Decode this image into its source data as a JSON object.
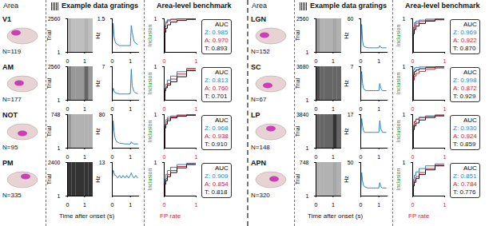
{
  "chart_data": {
    "type": "multi-panel",
    "headers": {
      "area": "Area",
      "example": "Example data gratings",
      "benchmark": "Area-level benchmark"
    },
    "axis_labels": {
      "trial": "Trial",
      "hz": "Hz",
      "inclusion": "Inclusion",
      "time": "Time after onset (s)",
      "fp": "FP rate"
    },
    "auc_title": "AUC",
    "xlim": [
      0,
      1.5
    ],
    "xticks": [
      0,
      1
    ],
    "raster_bins": [
      0,
      0.25,
      0.5,
      0.75,
      1.0,
      1.25,
      1.5
    ],
    "psth_x": [
      0,
      0.05,
      0.1,
      0.15,
      0.2,
      0.3,
      0.4,
      0.5,
      0.6,
      0.7,
      0.8,
      0.9,
      1.0,
      1.05,
      1.1,
      1.2,
      1.3,
      1.4
    ],
    "roc_xlim": [
      0,
      1
    ],
    "roc_xticks": [
      0,
      1
    ],
    "roc_ylim": [
      0,
      1
    ],
    "roc_yticks": [
      1
    ],
    "roc_x": [
      0,
      0.02,
      0.05,
      0.1,
      0.2,
      0.4,
      0.7,
      1
    ],
    "panels": [
      {
        "area": "V1",
        "n_label": "N=119",
        "raster": {
          "ylim": [
            1,
            2560
          ],
          "yticks": [
            1,
            2560
          ],
          "density": [
            0.3,
            0.25,
            0.25,
            0.25,
            0.3,
            0.25
          ]
        },
        "psth": {
          "ylim": [
            0,
            1.5
          ],
          "yticks": [
            1.5
          ],
          "color": "#2b86c5",
          "values": [
            0.3,
            1.3,
            0.7,
            0.5,
            0.4,
            0.35,
            0.3,
            0.3,
            0.3,
            0.3,
            0.3,
            0.3,
            0.3,
            1.2,
            0.9,
            0.5,
            0.4,
            0.35
          ]
        },
        "series": [
          {
            "name": "Z",
            "color": "#2b86c5",
            "auc": 0.985,
            "values": [
              0,
              0.8,
              0.92,
              0.97,
              0.99,
              1,
              1,
              1
            ]
          },
          {
            "name": "A",
            "color": "#c8283c",
            "auc": 0.97,
            "auc_label": "0.970",
            "values": [
              0,
              0.75,
              0.88,
              0.94,
              0.98,
              0.99,
              1,
              1
            ]
          },
          {
            "name": "T",
            "color": "#111111",
            "auc": 0.893,
            "values": [
              0,
              0.6,
              0.72,
              0.82,
              0.9,
              0.95,
              0.98,
              1
            ]
          }
        ]
      },
      {
        "area": "AM",
        "n_label": "N=177",
        "raster": {
          "ylim": [
            1,
            2560
          ],
          "yticks": [
            1,
            2560
          ],
          "density": [
            0.5,
            0.4,
            0.4,
            0.4,
            0.6,
            0.4
          ]
        },
        "psth": {
          "ylim": [
            0,
            7
          ],
          "yticks": [
            7
          ],
          "color": "#2b86c5",
          "values": [
            1.2,
            2.5,
            2,
            1.6,
            1.5,
            1.4,
            1.3,
            1.3,
            1.3,
            1.3,
            1.3,
            1.3,
            1.4,
            6.5,
            3,
            1.8,
            1.5,
            1.4
          ]
        },
        "series": [
          {
            "name": "Z",
            "color": "#2b86c5",
            "auc": 0.813,
            "values": [
              0,
              0.35,
              0.48,
              0.6,
              0.72,
              0.85,
              0.95,
              1
            ]
          },
          {
            "name": "A",
            "color": "#c8283c",
            "auc": 0.76,
            "auc_label": "0.760",
            "values": [
              0,
              0.3,
              0.4,
              0.5,
              0.63,
              0.78,
              0.92,
              1
            ]
          },
          {
            "name": "T",
            "color": "#111111",
            "auc": 0.701,
            "values": [
              0,
              0.28,
              0.37,
              0.45,
              0.55,
              0.7,
              0.88,
              1
            ]
          }
        ]
      },
      {
        "area": "NOT",
        "n_label": "N=95",
        "raster": {
          "ylim": [
            1,
            748
          ],
          "yticks": [
            1,
            748
          ],
          "density": [
            0.4,
            0.3,
            0.3,
            0.3,
            0.3,
            0.3
          ]
        },
        "psth": {
          "ylim": [
            0,
            80
          ],
          "yticks": [
            80
          ],
          "color": "#2b86c5",
          "values": [
            10,
            65,
            40,
            25,
            18,
            14,
            12,
            11,
            11,
            10,
            10,
            10,
            10,
            15,
            12,
            10,
            10,
            10
          ]
        },
        "series": [
          {
            "name": "Z",
            "color": "#2b86c5",
            "auc": 0.968,
            "values": [
              0,
              0.7,
              0.85,
              0.92,
              0.96,
              0.99,
              1,
              1
            ]
          },
          {
            "name": "A",
            "color": "#c8283c",
            "auc": 0.938,
            "values": [
              0,
              0.65,
              0.78,
              0.87,
              0.93,
              0.97,
              0.99,
              1
            ]
          },
          {
            "name": "T",
            "color": "#111111",
            "auc": 0.91,
            "auc_label": "0.910",
            "values": [
              0,
              0.6,
              0.72,
              0.82,
              0.9,
              0.95,
              0.98,
              1
            ]
          }
        ]
      },
      {
        "area": "PM",
        "n_label": "N=335",
        "raster": {
          "ylim": [
            1,
            2400
          ],
          "yticks": [
            1,
            2400
          ],
          "density": [
            0.8,
            0.8,
            0.8,
            0.8,
            0.8,
            0.8
          ]
        },
        "psth": {
          "ylim": [
            0,
            13
          ],
          "yticks": [
            13
          ],
          "color": "#2b86c5",
          "values": [
            7,
            10,
            9,
            8,
            8,
            7,
            8,
            7,
            8,
            7,
            8,
            7,
            8,
            9,
            8,
            7,
            8,
            7
          ]
        },
        "series": [
          {
            "name": "Z",
            "color": "#2b86c5",
            "auc": 0.909,
            "values": [
              0,
              0.5,
              0.65,
              0.76,
              0.86,
              0.94,
              0.98,
              1
            ]
          },
          {
            "name": "A",
            "color": "#c8283c",
            "auc": 0.854,
            "values": [
              0,
              0.4,
              0.52,
              0.64,
              0.76,
              0.88,
              0.96,
              1
            ]
          },
          {
            "name": "T",
            "color": "#111111",
            "auc": 0.818,
            "values": [
              0,
              0.35,
              0.46,
              0.58,
              0.7,
              0.84,
              0.94,
              1
            ]
          }
        ]
      },
      {
        "area": "LGN",
        "n_label": "N=152",
        "raster": {
          "ylim": [
            1,
            2560
          ],
          "yticks": [
            1,
            2560
          ],
          "density": [
            0.4,
            0.3,
            0.3,
            0.3,
            0.35,
            0.3
          ]
        },
        "psth": {
          "ylim": [
            0,
            60
          ],
          "yticks": [
            60
          ],
          "color": "#2b86c5",
          "values": [
            8,
            50,
            20,
            12,
            10,
            9,
            8,
            8,
            8,
            8,
            8,
            8,
            8,
            12,
            9,
            8,
            8,
            8
          ]
        },
        "series": [
          {
            "name": "Z",
            "color": "#2b86c5",
            "auc": 0.969,
            "values": [
              0,
              0.75,
              0.88,
              0.93,
              0.96,
              0.99,
              1,
              1
            ]
          },
          {
            "name": "A",
            "color": "#c8283c",
            "auc": 0.922,
            "values": [
              0,
              0.65,
              0.8,
              0.87,
              0.92,
              0.96,
              0.99,
              1
            ]
          },
          {
            "name": "T",
            "color": "#111111",
            "auc": 0.87,
            "auc_label": "0.870",
            "values": [
              0,
              0.55,
              0.68,
              0.78,
              0.86,
              0.93,
              0.97,
              1
            ]
          }
        ]
      },
      {
        "area": "SC",
        "n_label": "N=67",
        "raster": {
          "ylim": [
            1,
            3680
          ],
          "yticks": [
            1,
            3680
          ],
          "density": [
            0.7,
            0.6,
            0.6,
            0.6,
            0.6,
            0.6
          ]
        },
        "psth": {
          "ylim": [
            0,
            7
          ],
          "yticks": [
            7
          ],
          "color": "#2b86c5",
          "values": [
            2,
            6,
            3.5,
            2.5,
            2.2,
            2,
            2,
            2,
            2,
            2,
            2,
            2,
            2,
            3.5,
            2.5,
            2,
            2,
            2
          ]
        },
        "series": [
          {
            "name": "Z",
            "color": "#2b86c5",
            "auc": 0.998,
            "values": [
              0,
              0.9,
              0.96,
              0.98,
              0.99,
              1,
              1,
              1
            ]
          },
          {
            "name": "A",
            "color": "#c8283c",
            "auc": 0.872,
            "values": [
              0,
              0.6,
              0.72,
              0.8,
              0.86,
              0.92,
              0.96,
              1
            ]
          },
          {
            "name": "T",
            "color": "#111111",
            "auc": 0.929,
            "values": [
              0,
              0.75,
              0.85,
              0.9,
              0.94,
              0.97,
              0.99,
              1
            ]
          }
        ]
      },
      {
        "area": "LP",
        "n_label": "N=148",
        "raster": {
          "ylim": [
            1,
            3840
          ],
          "yticks": [
            1,
            3840
          ],
          "density": [
            0.6,
            0.6,
            0.6,
            0.6,
            0.8,
            0.6
          ]
        },
        "psth": {
          "ylim": [
            0,
            17
          ],
          "yticks": [
            17
          ],
          "color": "#2b86c5",
          "values": [
            6,
            15,
            11,
            9,
            8,
            8,
            8,
            8,
            8,
            8,
            8,
            8,
            8,
            14,
            10,
            8,
            8,
            8
          ]
        },
        "series": [
          {
            "name": "Z",
            "color": "#2b86c5",
            "auc": 0.93,
            "auc_label": "0.930",
            "values": [
              0,
              0.68,
              0.8,
              0.87,
              0.92,
              0.96,
              0.99,
              1
            ]
          },
          {
            "name": "A",
            "color": "#c8283c",
            "auc": 0.924,
            "values": [
              0,
              0.66,
              0.79,
              0.86,
              0.91,
              0.95,
              0.98,
              1
            ]
          },
          {
            "name": "T",
            "color": "#111111",
            "auc": 0.859,
            "values": [
              0,
              0.55,
              0.66,
              0.75,
              0.84,
              0.91,
              0.96,
              1
            ]
          }
        ]
      },
      {
        "area": "APN",
        "n_label": "N=320",
        "raster": {
          "ylim": [
            1,
            748
          ],
          "yticks": [
            1,
            748
          ],
          "density": [
            0.3,
            0.3,
            0.3,
            0.3,
            0.35,
            0.3
          ]
        },
        "psth": {
          "ylim": [
            0,
            50
          ],
          "yticks": [
            50
          ],
          "color": "#2b86c5",
          "values": [
            10,
            35,
            22,
            16,
            14,
            13,
            12,
            12,
            12,
            12,
            12,
            12,
            12,
            20,
            14,
            12,
            12,
            12
          ]
        },
        "series": [
          {
            "name": "Z",
            "color": "#2b86c5",
            "auc": 0.851,
            "values": [
              0,
              0.5,
              0.62,
              0.72,
              0.82,
              0.9,
              0.96,
              1
            ]
          },
          {
            "name": "A",
            "color": "#c8283c",
            "auc": 0.784,
            "values": [
              0,
              0.35,
              0.47,
              0.58,
              0.7,
              0.82,
              0.92,
              1
            ]
          },
          {
            "name": "T",
            "color": "#111111",
            "auc": 0.776,
            "values": [
              0,
              0.3,
              0.41,
              0.52,
              0.64,
              0.78,
              0.9,
              1
            ]
          }
        ]
      }
    ]
  }
}
